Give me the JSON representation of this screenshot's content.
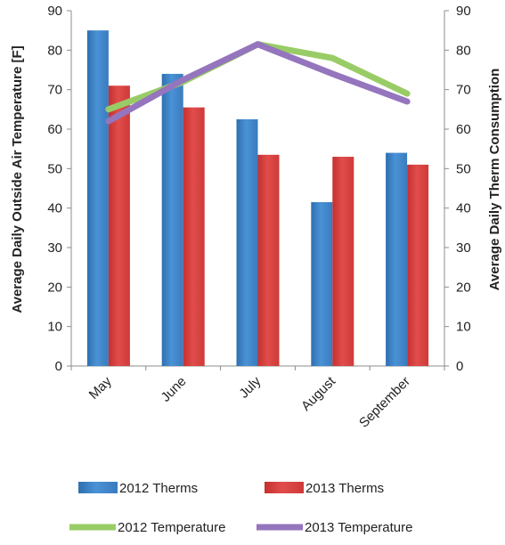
{
  "chart_data": {
    "type": "bar",
    "categories": [
      "May",
      "June",
      "July",
      "August",
      "September"
    ],
    "series": [
      {
        "name": "2012 Therms",
        "kind": "bar",
        "axis": "left",
        "color": "#3F85C8",
        "values": [
          85,
          74,
          62.5,
          41.5,
          54
        ]
      },
      {
        "name": "2013 Therms",
        "kind": "bar",
        "axis": "left",
        "color": "#D9403F",
        "values": [
          71,
          65.5,
          53.5,
          53,
          51
        ]
      },
      {
        "name": "2012 Temperature",
        "kind": "line",
        "axis": "right",
        "color": "#99CC66",
        "values": [
          65,
          72,
          81.5,
          78,
          69
        ]
      },
      {
        "name": "2013 Temperature",
        "kind": "line",
        "axis": "right",
        "color": "#9575BD",
        "values": [
          62,
          72.5,
          81.5,
          74,
          67
        ]
      }
    ],
    "ylabel_left": "Average Daily Outside Air Temperature [F]",
    "ylabel_right": "Average Daily Therm Consumption",
    "ylim_left": [
      0,
      90
    ],
    "ylim_right": [
      0,
      90
    ],
    "yticks": [
      "0",
      "10",
      "20",
      "30",
      "40",
      "50",
      "60",
      "70",
      "80",
      "90"
    ],
    "grid": false,
    "legend_position": "bottom"
  }
}
